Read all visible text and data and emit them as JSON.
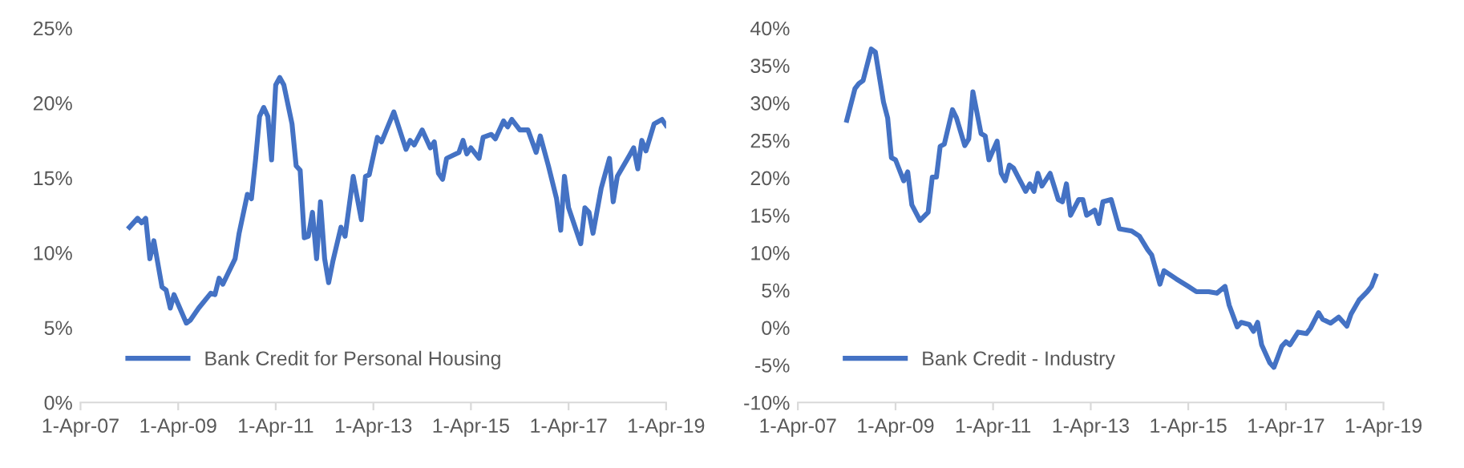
{
  "chart_data": [
    {
      "type": "line",
      "x": [
        "2008-04",
        "2008-06",
        "2008-07",
        "2008-08",
        "2008-09",
        "2008-10",
        "2008-12",
        "2009-01",
        "2009-02",
        "2009-03",
        "2009-06",
        "2009-07",
        "2009-09",
        "2009-12",
        "2010-01",
        "2010-02",
        "2010-03",
        "2010-06",
        "2010-07",
        "2010-09",
        "2010-10",
        "2010-11",
        "2010-12",
        "2011-01",
        "2011-02",
        "2011-03",
        "2011-04",
        "2011-05",
        "2011-06",
        "2011-08",
        "2011-09",
        "2011-10",
        "2011-11",
        "2011-12",
        "2012-01",
        "2012-02",
        "2012-03",
        "2012-04",
        "2012-05",
        "2012-06",
        "2012-08",
        "2012-09",
        "2012-11",
        "2013-01",
        "2013-02",
        "2013-03",
        "2013-05",
        "2013-06",
        "2013-09",
        "2013-12",
        "2014-01",
        "2014-02",
        "2014-04",
        "2014-06",
        "2014-07",
        "2014-08",
        "2014-09",
        "2014-10",
        "2015-01",
        "2015-02",
        "2015-03",
        "2015-04",
        "2015-06",
        "2015-07",
        "2015-09",
        "2015-10",
        "2015-12",
        "2016-01",
        "2016-02",
        "2016-04",
        "2016-06",
        "2016-08",
        "2016-09",
        "2016-11",
        "2017-01",
        "2017-02",
        "2017-03",
        "2017-04",
        "2017-07",
        "2017-08",
        "2017-09",
        "2017-10",
        "2017-12",
        "2018-02",
        "2018-03",
        "2018-04",
        "2018-07",
        "2018-08",
        "2018-09",
        "2018-10",
        "2018-11",
        "2019-01",
        "2019-03",
        "2019-04"
      ],
      "series": [
        {
          "name": "Bank Credit for Personal Housing",
          "color": "#4472c4",
          "values": [
            11.7,
            12.3,
            12.0,
            12.3,
            9.6,
            10.8,
            7.7,
            7.5,
            6.3,
            7.2,
            5.3,
            5.5,
            6.3,
            7.3,
            7.2,
            8.3,
            7.9,
            9.6,
            11.3,
            13.9,
            13.6,
            16.2,
            19.1,
            19.7,
            19.1,
            16.2,
            21.2,
            21.7,
            21.2,
            18.6,
            15.8,
            15.5,
            11.0,
            11.1,
            12.7,
            9.6,
            13.4,
            9.6,
            8.0,
            9.4,
            11.7,
            11.1,
            15.1,
            12.2,
            15.1,
            15.2,
            17.7,
            17.4,
            19.4,
            16.9,
            17.5,
            17.2,
            18.2,
            17.0,
            17.4,
            15.3,
            14.9,
            16.3,
            16.7,
            17.5,
            16.6,
            17.0,
            16.3,
            17.7,
            17.9,
            17.6,
            18.8,
            18.4,
            18.9,
            18.2,
            18.2,
            16.7,
            17.8,
            15.8,
            13.6,
            11.5,
            15.1,
            13.0,
            10.6,
            13.0,
            12.7,
            11.3,
            14.3,
            16.3,
            13.4,
            15.1,
            16.5,
            17.0,
            15.6,
            17.5,
            16.8,
            18.6,
            18.9,
            18.5
          ]
        }
      ],
      "xlim": [
        "2007-04-01",
        "2019-04-01"
      ],
      "xticks": [
        {
          "value": "2007-04-01",
          "label": "1-Apr-07"
        },
        {
          "value": "2009-04-01",
          "label": "1-Apr-09"
        },
        {
          "value": "2011-04-01",
          "label": "1-Apr-11"
        },
        {
          "value": "2013-04-01",
          "label": "1-Apr-13"
        },
        {
          "value": "2015-04-01",
          "label": "1-Apr-15"
        },
        {
          "value": "2017-04-01",
          "label": "1-Apr-17"
        },
        {
          "value": "2019-04-01",
          "label": "1-Apr-19"
        }
      ],
      "ylim": [
        0,
        25
      ],
      "yticks": [
        {
          "value": 0,
          "label": "0%"
        },
        {
          "value": 5,
          "label": "5%"
        },
        {
          "value": 10,
          "label": "10%"
        },
        {
          "value": 15,
          "label": "15%"
        },
        {
          "value": 20,
          "label": "20%"
        },
        {
          "value": 25,
          "label": "25%"
        }
      ],
      "legend": "bottom left",
      "marker": "none",
      "line_style": "solid"
    },
    {
      "type": "line",
      "x": [
        "2008-04",
        "2008-06",
        "2008-07",
        "2008-08",
        "2008-10",
        "2008-11",
        "2009-01",
        "2009-02",
        "2009-03",
        "2009-04",
        "2009-06",
        "2009-07",
        "2009-08",
        "2009-10",
        "2009-12",
        "2010-01",
        "2010-02",
        "2010-03",
        "2010-04",
        "2010-06",
        "2010-07",
        "2010-09",
        "2010-10",
        "2010-11",
        "2011-01",
        "2011-02",
        "2011-03",
        "2011-05",
        "2011-06",
        "2011-07",
        "2011-08",
        "2011-09",
        "2011-12",
        "2012-01",
        "2012-02",
        "2012-03",
        "2012-04",
        "2012-06",
        "2012-08",
        "2012-09",
        "2012-10",
        "2012-11",
        "2013-01",
        "2013-02",
        "2013-03",
        "2013-05",
        "2013-06",
        "2013-07",
        "2013-09",
        "2013-11",
        "2014-02",
        "2014-04",
        "2014-06",
        "2014-07",
        "2014-09",
        "2014-10",
        "2015-01",
        "2015-04",
        "2015-06",
        "2015-09",
        "2015-11",
        "2016-01",
        "2016-02",
        "2016-04",
        "2016-05",
        "2016-07",
        "2016-08",
        "2016-09",
        "2016-10",
        "2016-12",
        "2017-01",
        "2017-03",
        "2017-04",
        "2017-05",
        "2017-07",
        "2017-09",
        "2017-10",
        "2017-12",
        "2018-01",
        "2018-03",
        "2018-05",
        "2018-07",
        "2018-08",
        "2018-10",
        "2018-12",
        "2019-01",
        "2019-02"
      ],
      "series": [
        {
          "name": "Bank Credit - Industry",
          "color": "#4472c4",
          "values": [
            27.7,
            31.9,
            32.6,
            33.0,
            37.2,
            36.8,
            30.1,
            28.0,
            22.7,
            22.4,
            19.6,
            20.8,
            16.4,
            14.3,
            15.4,
            20.1,
            20.1,
            24.2,
            24.5,
            29.1,
            28.0,
            24.3,
            25.2,
            31.5,
            25.9,
            25.6,
            22.4,
            24.9,
            20.6,
            19.6,
            21.7,
            21.3,
            18.2,
            19.2,
            18.2,
            20.6,
            18.9,
            20.6,
            17.1,
            16.8,
            19.2,
            15.0,
            17.1,
            17.1,
            15.0,
            15.7,
            13.9,
            16.8,
            17.1,
            13.2,
            12.9,
            12.2,
            10.4,
            9.7,
            5.8,
            7.6,
            6.5,
            5.5,
            4.8,
            4.8,
            4.6,
            5.5,
            3.0,
            0.1,
            0.7,
            0.4,
            -0.5,
            0.7,
            -2.3,
            -4.7,
            -5.3,
            -2.5,
            -1.9,
            -2.3,
            -0.6,
            -0.8,
            -0.1,
            2.0,
            1.1,
            0.6,
            1.4,
            0.2,
            1.8,
            3.7,
            4.8,
            5.5,
            6.9
          ]
        }
      ],
      "xlim": [
        "2007-04-01",
        "2019-04-01"
      ],
      "xticks": [
        {
          "value": "2007-04-01",
          "label": "1-Apr-07"
        },
        {
          "value": "2009-04-01",
          "label": "1-Apr-09"
        },
        {
          "value": "2011-04-01",
          "label": "1-Apr-11"
        },
        {
          "value": "2013-04-01",
          "label": "1-Apr-13"
        },
        {
          "value": "2015-04-01",
          "label": "1-Apr-15"
        },
        {
          "value": "2017-04-01",
          "label": "1-Apr-17"
        },
        {
          "value": "2019-04-01",
          "label": "1-Apr-19"
        }
      ],
      "ylim": [
        -10,
        40
      ],
      "yticks": [
        {
          "value": -10,
          "label": "-10%"
        },
        {
          "value": -5,
          "label": "-5%"
        },
        {
          "value": 0,
          "label": "0%"
        },
        {
          "value": 5,
          "label": "5%"
        },
        {
          "value": 10,
          "label": "10%"
        },
        {
          "value": 15,
          "label": "15%"
        },
        {
          "value": 20,
          "label": "20%"
        },
        {
          "value": 25,
          "label": "25%"
        },
        {
          "value": 30,
          "label": "30%"
        },
        {
          "value": 35,
          "label": "35%"
        },
        {
          "value": 40,
          "label": "40%"
        }
      ],
      "legend": "bottom left",
      "marker": "none",
      "line_style": "solid"
    }
  ]
}
